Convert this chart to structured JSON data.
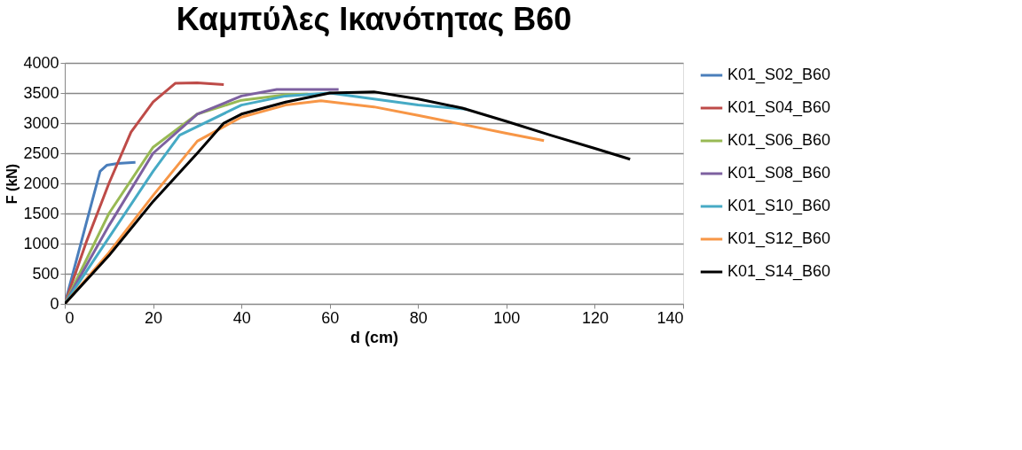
{
  "chart_data": {
    "type": "line",
    "title": "Καμπύλες Ικανότητας B60",
    "xlabel": "d (cm)",
    "ylabel": "F (kN)",
    "xlim": [
      0,
      140
    ],
    "xticks": [
      0,
      20,
      40,
      60,
      80,
      100,
      120,
      140
    ],
    "ylim": [
      0,
      4000
    ],
    "yticks": [
      0,
      500,
      1000,
      1500,
      2000,
      2500,
      3000,
      3500,
      4000
    ],
    "grid": "y",
    "legend": "right",
    "marker": "none",
    "line_style": "solid",
    "series": [
      {
        "name": "K01_S02_B60",
        "color": "#4a7ebb",
        "x": [
          0,
          8,
          9.5,
          12,
          16
        ],
        "values": [
          0,
          2200,
          2300,
          2330,
          2350
        ]
      },
      {
        "name": "K01_S04_B60",
        "color": "#be4b48",
        "x": [
          0,
          5,
          10,
          15,
          20,
          25,
          30,
          36
        ],
        "values": [
          0,
          1050,
          2000,
          2850,
          3350,
          3660,
          3670,
          3640
        ]
      },
      {
        "name": "K01_S06_B60",
        "color": "#98b954",
        "x": [
          0,
          10,
          20,
          30,
          40,
          50,
          55
        ],
        "values": [
          0,
          1500,
          2600,
          3150,
          3380,
          3470,
          3480
        ]
      },
      {
        "name": "K01_S08_B60",
        "color": "#7d60a0",
        "x": [
          0,
          10,
          20,
          30,
          40,
          48,
          62
        ],
        "values": [
          0,
          1300,
          2500,
          3150,
          3450,
          3560,
          3560
        ]
      },
      {
        "name": "K01_S10_B60",
        "color": "#46aac5",
        "x": [
          0,
          10,
          20,
          26,
          40,
          50,
          60,
          70,
          80,
          91
        ],
        "values": [
          0,
          1100,
          2200,
          2800,
          3300,
          3450,
          3500,
          3400,
          3300,
          3230
        ]
      },
      {
        "name": "K01_S12_B60",
        "color": "#f79646",
        "x": [
          0,
          10,
          20,
          30,
          40,
          50,
          58,
          70,
          80,
          90,
          100,
          108.5
        ],
        "values": [
          0,
          850,
          1800,
          2700,
          3100,
          3300,
          3370,
          3270,
          3130,
          2980,
          2830,
          2710
        ]
      },
      {
        "name": "K01_S14_B60",
        "color": "#000000",
        "x": [
          0,
          10,
          20,
          30,
          36,
          40,
          50,
          60,
          70,
          80,
          90,
          100,
          110,
          120,
          128
        ],
        "values": [
          0,
          800,
          1700,
          2500,
          3000,
          3150,
          3350,
          3500,
          3520,
          3400,
          3250,
          3030,
          2800,
          2580,
          2400
        ]
      }
    ]
  }
}
